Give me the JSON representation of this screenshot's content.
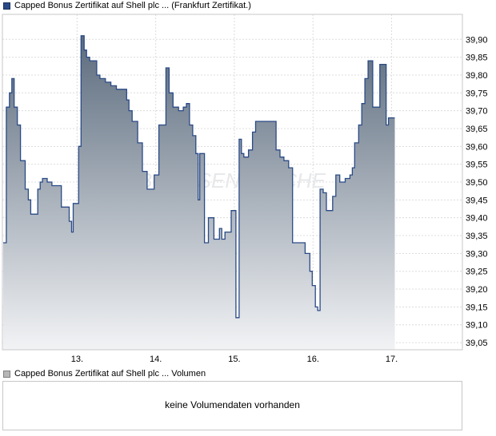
{
  "legend": {
    "main_label": "Capped Bonus Zertifikat auf Shell plc ... (Frankfurt Zertifikat.)",
    "volume_label": "Capped Bonus Zertifikat auf Shell plc ... Volumen",
    "main_color": "#2a4a86",
    "volume_color": "#b7b7b7"
  },
  "volume": {
    "message": "keine Volumendaten vorhanden"
  },
  "watermark": {
    "text": "BOERSEN WOCHE",
    "color": "#e6e8ea"
  },
  "chart_data": {
    "type": "area",
    "title": "",
    "xlabel": "",
    "ylabel": "",
    "x_ticks": [
      {
        "label": "13.",
        "x": 1.0
      },
      {
        "label": "14.",
        "x": 2.0
      },
      {
        "label": "15.",
        "x": 3.0
      },
      {
        "label": "16.",
        "x": 4.0
      },
      {
        "label": "17.",
        "x": 5.0
      }
    ],
    "xlim": [
      0.05,
      5.9
    ],
    "ylim": [
      39.03,
      39.97
    ],
    "y_ticks": [
      "39,05",
      "39,10",
      "39,15",
      "39,20",
      "39,25",
      "39,30",
      "39,35",
      "39,40",
      "39,45",
      "39,50",
      "39,55",
      "39,60",
      "39,65",
      "39,70",
      "39,75",
      "39,80",
      "39,85",
      "39,90"
    ],
    "grid": true,
    "line_color": "#2a4a86",
    "fill_top_color": "#5b6b7d",
    "fill_bottom_color": "#f2f3f5",
    "series": [
      {
        "values": [
          [
            0.06,
            39.33
          ],
          [
            0.1,
            39.33
          ],
          [
            0.1,
            39.71
          ],
          [
            0.14,
            39.71
          ],
          [
            0.14,
            39.75
          ],
          [
            0.17,
            39.75
          ],
          [
            0.17,
            39.79
          ],
          [
            0.2,
            39.79
          ],
          [
            0.2,
            39.71
          ],
          [
            0.24,
            39.71
          ],
          [
            0.24,
            39.66
          ],
          [
            0.28,
            39.66
          ],
          [
            0.28,
            39.56
          ],
          [
            0.34,
            39.56
          ],
          [
            0.34,
            39.48
          ],
          [
            0.38,
            39.48
          ],
          [
            0.38,
            39.45
          ],
          [
            0.41,
            39.45
          ],
          [
            0.41,
            39.41
          ],
          [
            0.46,
            39.41
          ],
          [
            0.46,
            39.41
          ],
          [
            0.5,
            39.41
          ],
          [
            0.5,
            39.48
          ],
          [
            0.53,
            39.48
          ],
          [
            0.53,
            39.5
          ],
          [
            0.56,
            39.5
          ],
          [
            0.56,
            39.51
          ],
          [
            0.62,
            39.51
          ],
          [
            0.62,
            39.5
          ],
          [
            0.68,
            39.5
          ],
          [
            0.68,
            39.49
          ],
          [
            0.72,
            39.49
          ],
          [
            0.72,
            39.49
          ],
          [
            0.76,
            39.49
          ],
          [
            0.76,
            39.49
          ],
          [
            0.8,
            39.49
          ],
          [
            0.8,
            39.43
          ],
          [
            0.86,
            39.43
          ],
          [
            0.86,
            39.43
          ],
          [
            0.9,
            39.43
          ],
          [
            0.9,
            39.39
          ],
          [
            0.93,
            39.39
          ],
          [
            0.93,
            39.36
          ],
          [
            0.95,
            39.36
          ],
          [
            0.95,
            39.44
          ],
          [
            1.02,
            39.44
          ],
          [
            1.02,
            39.6
          ],
          [
            1.05,
            39.6
          ],
          [
            1.05,
            39.91
          ],
          [
            1.09,
            39.91
          ],
          [
            1.09,
            39.87
          ],
          [
            1.12,
            39.87
          ],
          [
            1.12,
            39.85
          ],
          [
            1.16,
            39.85
          ],
          [
            1.16,
            39.84
          ],
          [
            1.25,
            39.84
          ],
          [
            1.25,
            39.8
          ],
          [
            1.29,
            39.8
          ],
          [
            1.29,
            39.79
          ],
          [
            1.36,
            39.79
          ],
          [
            1.36,
            39.78
          ],
          [
            1.43,
            39.78
          ],
          [
            1.43,
            39.77
          ],
          [
            1.5,
            39.77
          ],
          [
            1.5,
            39.76
          ],
          [
            1.57,
            39.76
          ],
          [
            1.57,
            39.76
          ],
          [
            1.63,
            39.76
          ],
          [
            1.63,
            39.73
          ],
          [
            1.66,
            39.73
          ],
          [
            1.66,
            39.7
          ],
          [
            1.7,
            39.7
          ],
          [
            1.7,
            39.67
          ],
          [
            1.77,
            39.67
          ],
          [
            1.77,
            39.61
          ],
          [
            1.83,
            39.61
          ],
          [
            1.83,
            39.53
          ],
          [
            1.89,
            39.53
          ],
          [
            1.89,
            39.48
          ],
          [
            1.93,
            39.48
          ],
          [
            1.93,
            39.48
          ],
          [
            1.98,
            39.48
          ],
          [
            1.98,
            39.52
          ],
          [
            2.04,
            39.52
          ],
          [
            2.04,
            39.66
          ],
          [
            2.11,
            39.66
          ],
          [
            2.11,
            39.66
          ],
          [
            2.13,
            39.66
          ],
          [
            2.13,
            39.82
          ],
          [
            2.17,
            39.82
          ],
          [
            2.17,
            39.75
          ],
          [
            2.22,
            39.75
          ],
          [
            2.22,
            39.71
          ],
          [
            2.29,
            39.71
          ],
          [
            2.29,
            39.7
          ],
          [
            2.35,
            39.7
          ],
          [
            2.35,
            39.71
          ],
          [
            2.39,
            39.71
          ],
          [
            2.39,
            39.72
          ],
          [
            2.43,
            39.72
          ],
          [
            2.43,
            39.66
          ],
          [
            2.47,
            39.66
          ],
          [
            2.47,
            39.63
          ],
          [
            2.51,
            39.63
          ],
          [
            2.51,
            39.58
          ],
          [
            2.54,
            39.58
          ],
          [
            2.54,
            39.45
          ],
          [
            2.56,
            39.45
          ],
          [
            2.56,
            39.58
          ],
          [
            2.62,
            39.58
          ],
          [
            2.62,
            39.33
          ],
          [
            2.67,
            39.33
          ],
          [
            2.67,
            39.4
          ],
          [
            2.74,
            39.4
          ],
          [
            2.74,
            39.34
          ],
          [
            2.78,
            39.34
          ],
          [
            2.78,
            39.34
          ],
          [
            2.81,
            39.34
          ],
          [
            2.81,
            39.37
          ],
          [
            2.84,
            39.37
          ],
          [
            2.84,
            39.34
          ],
          [
            2.88,
            39.34
          ],
          [
            2.88,
            39.36
          ],
          [
            2.96,
            39.36
          ],
          [
            2.96,
            39.42
          ],
          [
            3.02,
            39.42
          ],
          [
            3.02,
            39.12
          ],
          [
            3.06,
            39.12
          ],
          [
            3.06,
            39.62
          ],
          [
            3.09,
            39.62
          ],
          [
            3.09,
            39.58
          ],
          [
            3.12,
            39.58
          ],
          [
            3.12,
            39.57
          ],
          [
            3.18,
            39.57
          ],
          [
            3.18,
            39.59
          ],
          [
            3.23,
            39.59
          ],
          [
            3.23,
            39.64
          ],
          [
            3.27,
            39.64
          ],
          [
            3.27,
            39.67
          ],
          [
            3.53,
            39.67
          ],
          [
            3.53,
            39.59
          ],
          [
            3.58,
            39.59
          ],
          [
            3.58,
            39.57
          ],
          [
            3.63,
            39.57
          ],
          [
            3.63,
            39.56
          ],
          [
            3.69,
            39.56
          ],
          [
            3.69,
            39.54
          ],
          [
            3.74,
            39.54
          ],
          [
            3.74,
            39.33
          ],
          [
            3.9,
            39.33
          ],
          [
            3.9,
            39.3
          ],
          [
            3.96,
            39.3
          ],
          [
            3.96,
            39.25
          ],
          [
            3.99,
            39.25
          ],
          [
            3.99,
            39.21
          ],
          [
            4.03,
            39.21
          ],
          [
            4.03,
            39.15
          ],
          [
            4.06,
            39.15
          ],
          [
            4.06,
            39.14
          ],
          [
            4.09,
            39.14
          ],
          [
            4.09,
            39.48
          ],
          [
            4.13,
            39.48
          ],
          [
            4.13,
            39.47
          ],
          [
            4.17,
            39.47
          ],
          [
            4.17,
            39.42
          ],
          [
            4.21,
            39.42
          ],
          [
            4.21,
            39.42
          ],
          [
            4.25,
            39.42
          ],
          [
            4.25,
            39.46
          ],
          [
            4.29,
            39.46
          ],
          [
            4.29,
            39.52
          ],
          [
            4.34,
            39.52
          ],
          [
            4.34,
            39.5
          ],
          [
            4.41,
            39.5
          ],
          [
            4.41,
            39.51
          ],
          [
            4.47,
            39.51
          ],
          [
            4.47,
            39.52
          ],
          [
            4.5,
            39.52
          ],
          [
            4.5,
            39.54
          ],
          [
            4.53,
            39.54
          ],
          [
            4.53,
            39.61
          ],
          [
            4.58,
            39.61
          ],
          [
            4.58,
            39.66
          ],
          [
            4.62,
            39.66
          ],
          [
            4.62,
            39.72
          ],
          [
            4.66,
            39.72
          ],
          [
            4.66,
            39.79
          ],
          [
            4.7,
            39.79
          ],
          [
            4.7,
            39.84
          ],
          [
            4.76,
            39.84
          ],
          [
            4.76,
            39.71
          ],
          [
            4.8,
            39.71
          ],
          [
            4.8,
            39.71
          ],
          [
            4.85,
            39.71
          ],
          [
            4.85,
            39.83
          ],
          [
            4.89,
            39.83
          ],
          [
            4.89,
            39.83
          ],
          [
            4.93,
            39.83
          ],
          [
            4.93,
            39.66
          ],
          [
            4.96,
            39.66
          ],
          [
            4.96,
            39.68
          ],
          [
            5.04,
            39.68
          ]
        ]
      }
    ]
  }
}
